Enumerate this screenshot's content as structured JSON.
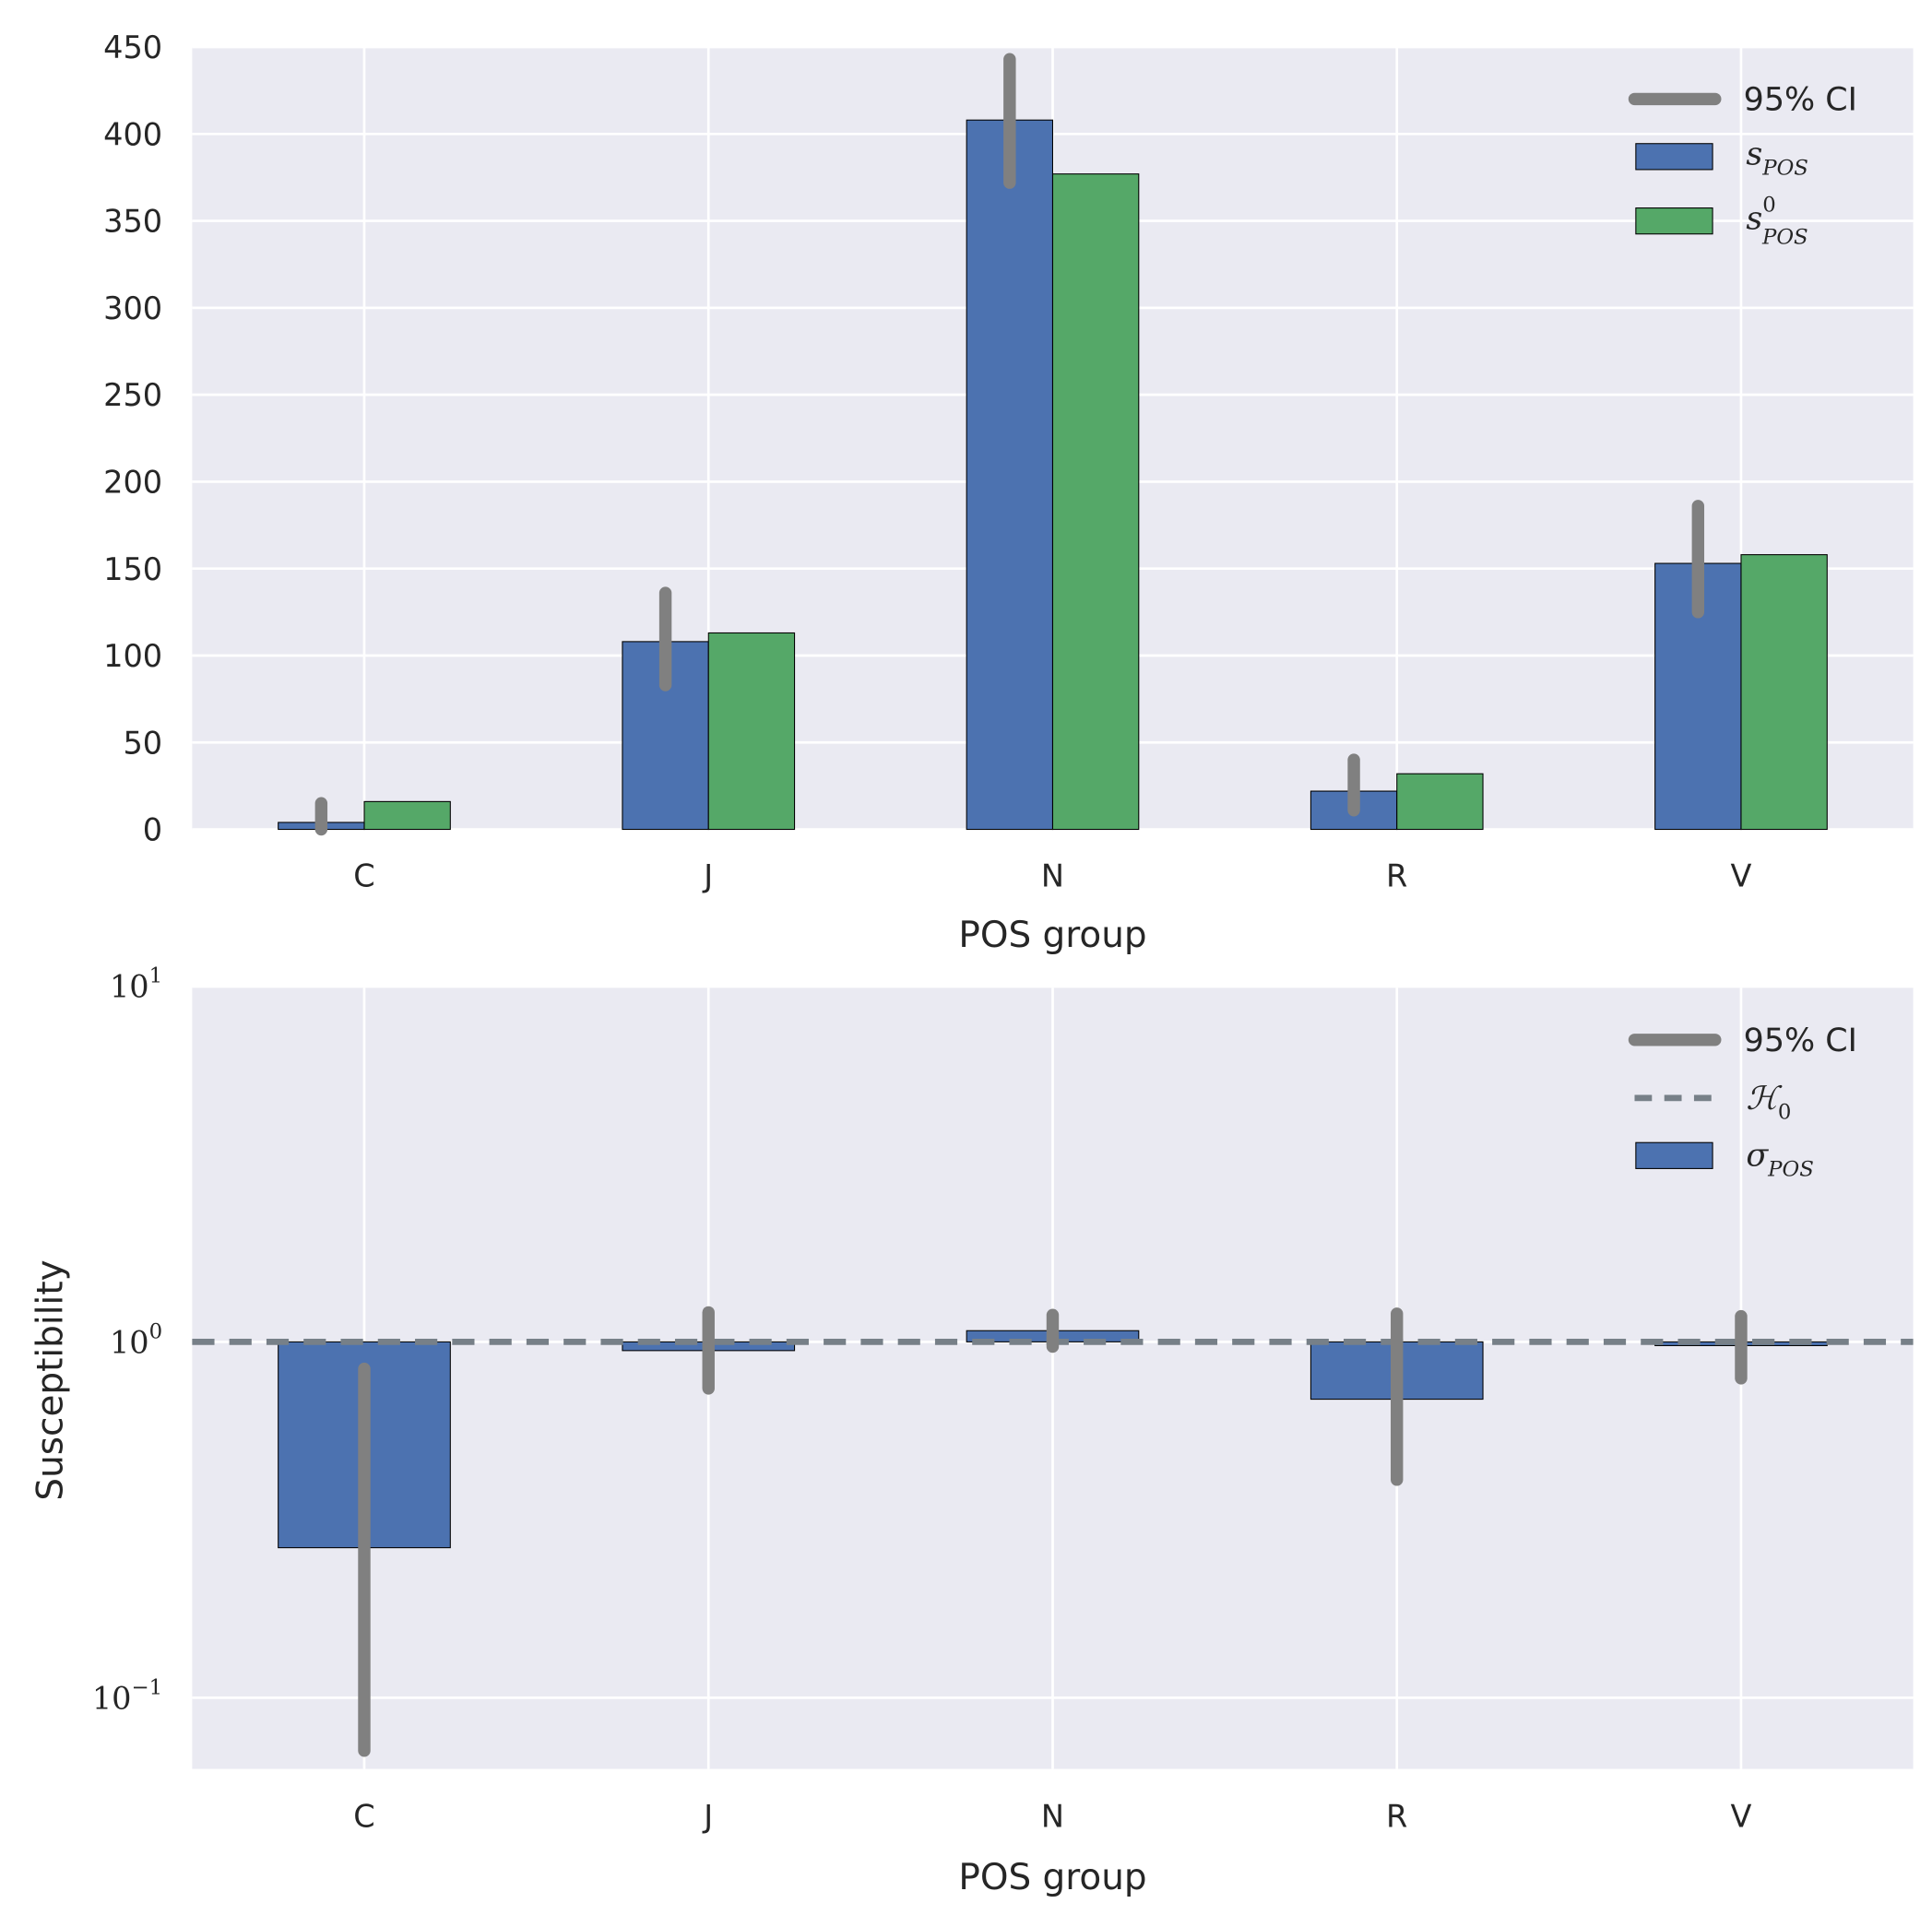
{
  "colors": {
    "blue": "#4c72b0",
    "green": "#55a868",
    "ci": "#808080",
    "h0": "#778088",
    "bg": "#eaeaf2"
  },
  "chart_data": [
    {
      "type": "bar",
      "title": "",
      "xlabel": "POS group",
      "ylabel": "",
      "categories": [
        "C",
        "J",
        "N",
        "R",
        "V"
      ],
      "ylim": [
        0,
        450
      ],
      "yticks": [
        "0",
        "50",
        "100",
        "150",
        "200",
        "250",
        "300",
        "350",
        "400",
        "450"
      ],
      "yscale": "linear",
      "grid": true,
      "legend_position": "top-right",
      "series": [
        {
          "name": "s_POS",
          "label": "s",
          "sub": "POS",
          "sup": "",
          "color": "#4c72b0",
          "values": [
            4,
            108,
            408,
            22,
            153
          ],
          "ci_low": [
            0,
            83,
            372,
            11,
            125
          ],
          "ci_high": [
            15,
            136,
            443,
            40,
            186
          ]
        },
        {
          "name": "s^0_POS",
          "label": "s",
          "sub": "POS",
          "sup": "0",
          "color": "#55a868",
          "values": [
            16,
            113,
            377,
            32,
            158
          ]
        }
      ],
      "legend": {
        "ci_label": "95% CI"
      }
    },
    {
      "type": "bar",
      "title": "",
      "xlabel": "POS group",
      "ylabel": "Susceptibility",
      "categories": [
        "C",
        "J",
        "N",
        "R",
        "V"
      ],
      "yscale": "log",
      "ylim": [
        0.064,
        10
      ],
      "yticks": [
        {
          "base": "10",
          "exp": "1"
        },
        {
          "base": "10",
          "exp": "0"
        },
        {
          "base": "10",
          "exp": "−1"
        }
      ],
      "grid": true,
      "legend_position": "top-right",
      "reference_line": {
        "name": "H_0",
        "label": "ℋ",
        "sub": "0",
        "value": 1
      },
      "series": [
        {
          "name": "σ_POS",
          "label": "σ",
          "sub": "POS",
          "sup": "",
          "color": "#4c72b0",
          "values": [
            0.264,
            0.945,
            1.075,
            0.69,
            0.976
          ],
          "ci_low": [
            0.071,
            0.74,
            0.97,
            0.41,
            0.79
          ],
          "ci_high": [
            0.84,
            1.21,
            1.19,
            1.2,
            1.18
          ]
        }
      ],
      "legend": {
        "ci_label": "95% CI"
      }
    }
  ]
}
